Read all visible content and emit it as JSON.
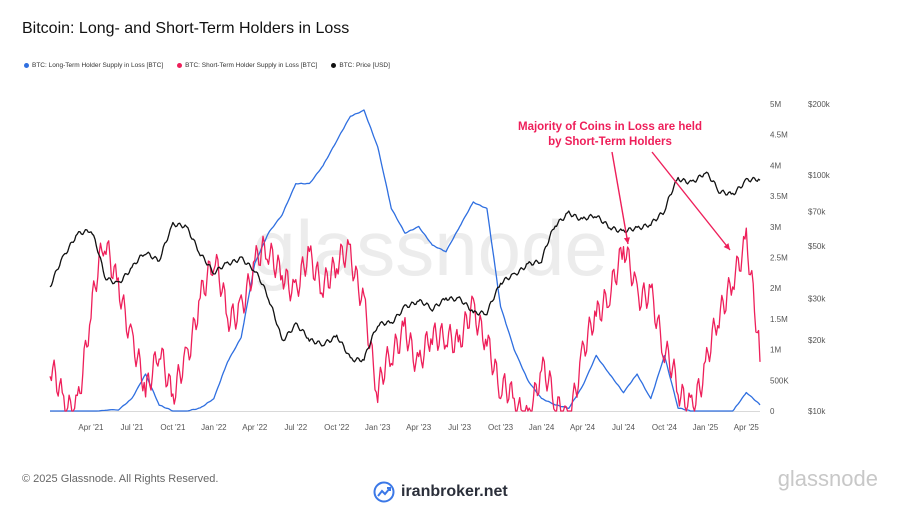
{
  "header": {
    "title": "Bitcoin: Long- and Short-Term Holders in Loss"
  },
  "legend": [
    {
      "label": "BTC: Long-Term Holder Supply in Loss [BTC]",
      "color": "#2f6fe0"
    },
    {
      "label": "BTC: Short-Term Holder Supply in Loss [BTC]",
      "color": "#ee1f5a"
    },
    {
      "label": "BTC: Price [USD]",
      "color": "#111111"
    }
  ],
  "annotation": {
    "line1": "Majority of Coins in Loss are held",
    "line2": "by Short-Term Holders",
    "color": "#ee1f5a"
  },
  "watermark": "glassnode",
  "footer": {
    "copyright": "© 2025 Glassnode. All Rights Reserved.",
    "logo_text": "glassnode",
    "broker_text": "iranbroker.net"
  },
  "chart_data": {
    "type": "line",
    "x_tick_labels": [
      "Apr '21",
      "Jul '21",
      "Oct '21",
      "Jan '22",
      "Apr '22",
      "Jul '22",
      "Oct '22",
      "Jan '23",
      "Apr '23",
      "Jul '23",
      "Oct '23",
      "Jan '24",
      "Apr '24",
      "Jul '24",
      "Oct '24",
      "Jan '25",
      "Apr '25"
    ],
    "x_range": [
      "2021-01",
      "2025-05"
    ],
    "y_left": {
      "label": "",
      "ticks": [
        "0",
        "500K",
        "1M",
        "1.5M",
        "2M",
        "2.5M",
        "3M",
        "3.5M",
        "4M",
        "4.5M",
        "5M"
      ],
      "ylim": [
        0,
        5000000
      ]
    },
    "y_right": {
      "label": "",
      "scale": "log",
      "ticks": [
        "$10k",
        "$20k",
        "$30k",
        "$50k",
        "$70k",
        "$100k",
        "$200k"
      ],
      "ylim": [
        10000,
        200000
      ]
    },
    "grid": false,
    "legend_position": "top-left",
    "series": [
      {
        "name": "BTC: Long-Term Holder Supply in Loss [BTC]",
        "axis": "left",
        "color": "#2f6fe0",
        "x": [
          "2021-01",
          "2021-04",
          "2021-06",
          "2021-07",
          "2021-08",
          "2021-09",
          "2021-10",
          "2021-11",
          "2021-12",
          "2022-01",
          "2022-02",
          "2022-03",
          "2022-04",
          "2022-05",
          "2022-06",
          "2022-07",
          "2022-08",
          "2022-09",
          "2022-10",
          "2022-11",
          "2022-12",
          "2023-01",
          "2023-02",
          "2023-03",
          "2023-04",
          "2023-05",
          "2023-06",
          "2023-07",
          "2023-08",
          "2023-09",
          "2023-10",
          "2023-11",
          "2023-12",
          "2024-01",
          "2024-02",
          "2024-03",
          "2024-04",
          "2024-05",
          "2024-06",
          "2024-07",
          "2024-08",
          "2024-09",
          "2024-10",
          "2024-11",
          "2024-12",
          "2025-01",
          "2025-02",
          "2025-03",
          "2025-04",
          "2025-05"
        ],
        "values": [
          0,
          0,
          20000,
          200000,
          600000,
          100000,
          0,
          0,
          50000,
          200000,
          800000,
          1200000,
          2400000,
          2900000,
          3200000,
          3700000,
          3700000,
          4000000,
          4400000,
          4800000,
          4900000,
          4300000,
          3300000,
          2900000,
          3000000,
          2700000,
          2600000,
          3000000,
          3400000,
          3300000,
          1700000,
          1000000,
          500000,
          200000,
          100000,
          50000,
          400000,
          900000,
          600000,
          300000,
          600000,
          200000,
          900000,
          50000,
          0,
          0,
          0,
          0,
          300000,
          100000
        ]
      },
      {
        "name": "BTC: Short-Term Holder Supply in Loss [BTC]",
        "axis": "left",
        "color": "#ee1f5a",
        "x": [
          "2021-01",
          "2021-02",
          "2021-03",
          "2021-04",
          "2021-05",
          "2021-06",
          "2021-07",
          "2021-08",
          "2021-09",
          "2021-10",
          "2021-11",
          "2021-12",
          "2022-01",
          "2022-02",
          "2022-03",
          "2022-04",
          "2022-05",
          "2022-06",
          "2022-07",
          "2022-08",
          "2022-09",
          "2022-10",
          "2022-11",
          "2022-12",
          "2023-01",
          "2023-02",
          "2023-03",
          "2023-04",
          "2023-05",
          "2023-06",
          "2023-07",
          "2023-08",
          "2023-09",
          "2023-10",
          "2023-11",
          "2023-12",
          "2024-01",
          "2024-02",
          "2024-03",
          "2024-04",
          "2024-05",
          "2024-06",
          "2024-07",
          "2024-08",
          "2024-09",
          "2024-10",
          "2024-11",
          "2024-12",
          "2025-01",
          "2025-02",
          "2025-03",
          "2025-04",
          "2025-05"
        ],
        "values": [
          600000,
          100000,
          200000,
          1500000,
          2800000,
          2200000,
          1000000,
          300000,
          1200000,
          100000,
          800000,
          2000000,
          2400000,
          1500000,
          1800000,
          2300000,
          2600000,
          2400000,
          1800000,
          2500000,
          2200000,
          2300000,
          2500000,
          1900000,
          200000,
          900000,
          1500000,
          600000,
          1200000,
          1400000,
          1000000,
          1600000,
          1300000,
          300000,
          100000,
          0,
          600000,
          100000,
          0,
          800000,
          1500000,
          2100000,
          2600000,
          1800000,
          2100000,
          900000,
          300000,
          200000,
          600000,
          1500000,
          2300000,
          2700000,
          800000
        ]
      },
      {
        "name": "BTC: Price [USD]",
        "axis": "right",
        "color": "#111111",
        "x": [
          "2021-01",
          "2021-02",
          "2021-03",
          "2021-04",
          "2021-05",
          "2021-06",
          "2021-07",
          "2021-08",
          "2021-09",
          "2021-10",
          "2021-11",
          "2021-12",
          "2022-01",
          "2022-02",
          "2022-03",
          "2022-04",
          "2022-05",
          "2022-06",
          "2022-07",
          "2022-08",
          "2022-09",
          "2022-10",
          "2022-11",
          "2022-12",
          "2023-01",
          "2023-02",
          "2023-03",
          "2023-04",
          "2023-05",
          "2023-06",
          "2023-07",
          "2023-08",
          "2023-09",
          "2023-10",
          "2023-11",
          "2023-12",
          "2024-01",
          "2024-02",
          "2024-03",
          "2024-04",
          "2024-05",
          "2024-06",
          "2024-07",
          "2024-08",
          "2024-09",
          "2024-10",
          "2024-11",
          "2024-12",
          "2025-01",
          "2025-02",
          "2025-03",
          "2025-04",
          "2025-05"
        ],
        "values": [
          33000,
          45000,
          57000,
          58000,
          37000,
          35000,
          40000,
          47000,
          44000,
          61000,
          60000,
          47000,
          38000,
          42000,
          45000,
          39000,
          30000,
          20000,
          23000,
          20000,
          19500,
          20500,
          16500,
          16800,
          23000,
          23500,
          28000,
          29000,
          27000,
          30500,
          29500,
          26000,
          26500,
          34500,
          37500,
          42500,
          43000,
          61000,
          70000,
          64000,
          67000,
          61000,
          57000,
          59000,
          63000,
          70000,
          96000,
          94000,
          102000,
          85000,
          84000,
          94000,
          95000
        ]
      }
    ]
  }
}
